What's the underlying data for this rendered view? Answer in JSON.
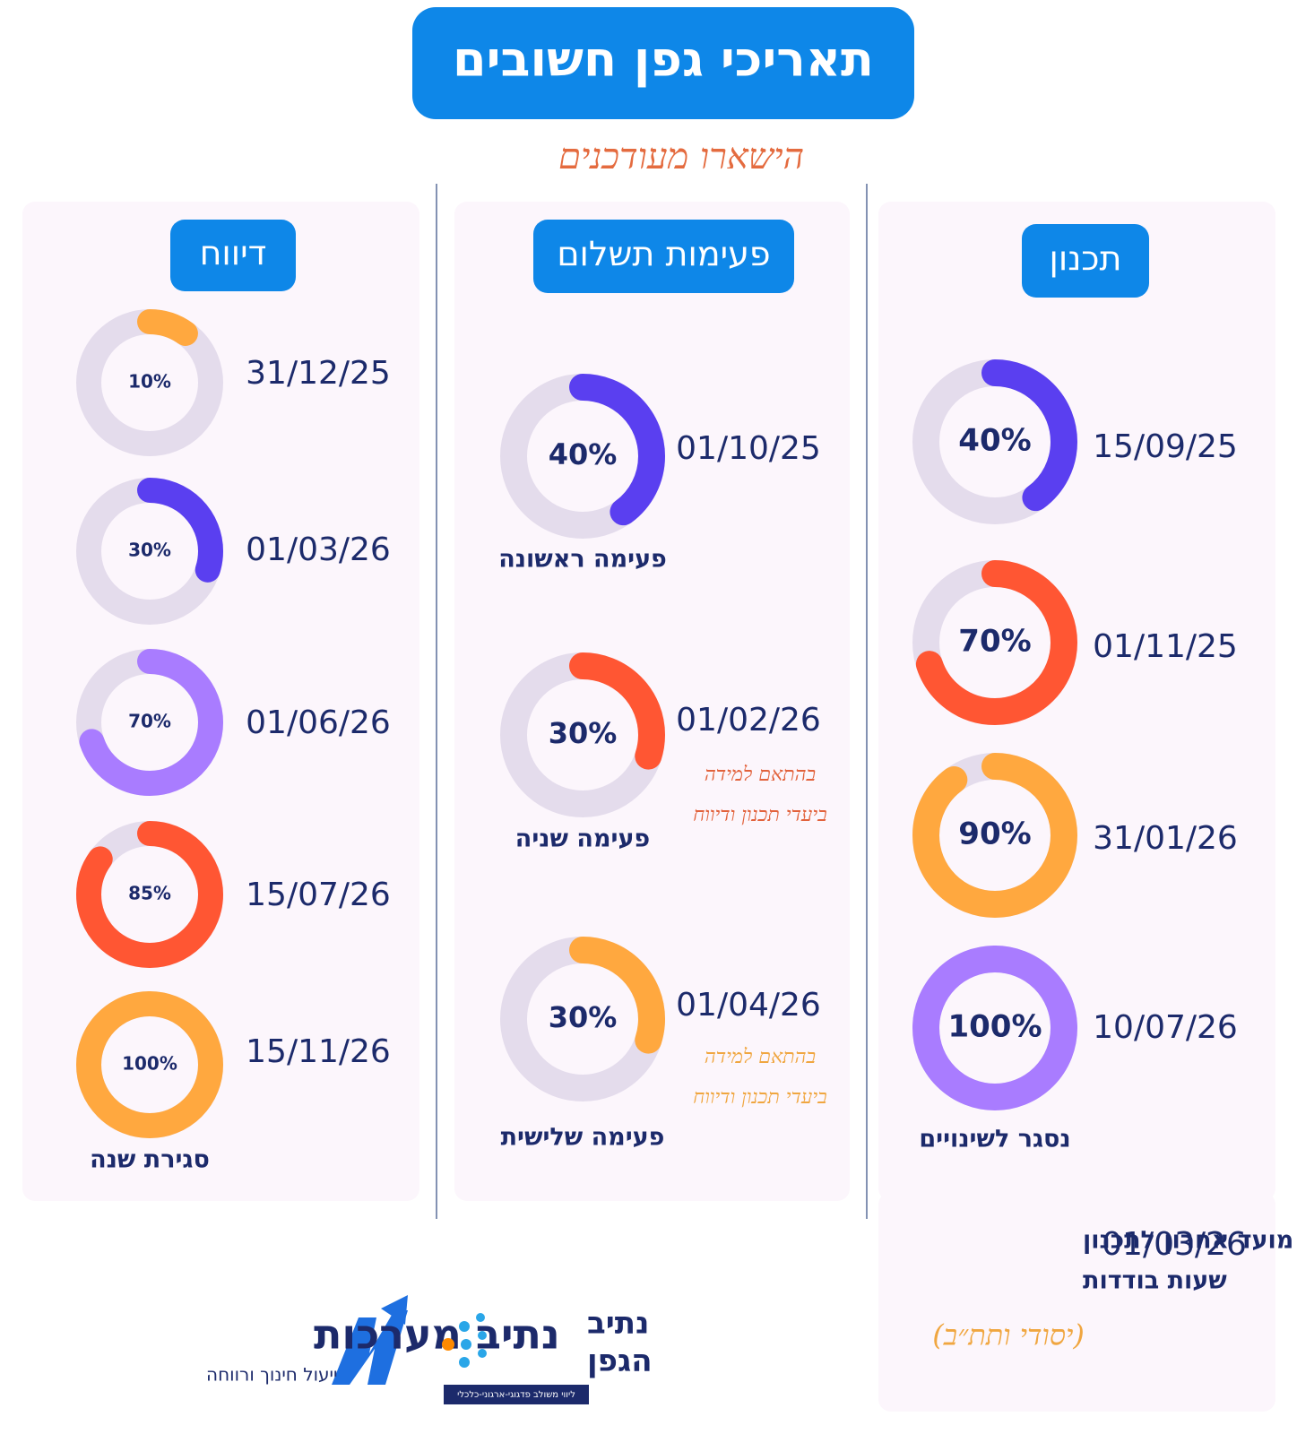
{
  "header": {
    "title": "תאריכי גפן חשובים",
    "subtitle": "הישארו מעודכנים"
  },
  "columns": [
    {
      "title": "תכנון",
      "items": [
        {
          "date": "15/09/25",
          "value": 40,
          "value_label": "40%",
          "color": "#5a3ff0"
        },
        {
          "date": "01/11/25",
          "value": 70,
          "value_label": "70%",
          "color": "#ff5633"
        },
        {
          "date": "31/01/26",
          "value": 90,
          "value_label": "90%",
          "color": "#ffa83f"
        },
        {
          "date": "10/07/26",
          "value": 100,
          "value_label": "100%",
          "color": "#a97cff",
          "label": "נסגר לשינויים"
        }
      ]
    },
    {
      "title": "פעימות תשלום",
      "items": [
        {
          "date": "01/10/25",
          "value": 40,
          "value_label": "40%",
          "color": "#5a3ff0",
          "label": "פעימה ראשונה"
        },
        {
          "date": "01/02/26",
          "value": 30,
          "value_label": "30%",
          "color": "#ff5633",
          "label": "פעימה שניה",
          "note": [
            "בהתאם למידה",
            "ביעדי תכנון ודיווח"
          ],
          "note_color": "#e2623c"
        },
        {
          "date": "01/04/26",
          "value": 30,
          "value_label": "30%",
          "color": "#ffa83f",
          "label": "פעימה שלישית",
          "note": [
            "בהתאם למידה",
            "ביעדי תכנון ודיווח"
          ],
          "note_color": "#f0a640"
        }
      ]
    },
    {
      "title": "דיווח",
      "items": [
        {
          "date": "31/12/25",
          "value": 10,
          "value_label": "10%",
          "color": "#ffa83f"
        },
        {
          "date": "01/03/26",
          "value": 30,
          "value_label": "30%",
          "color": "#5a3ff0"
        },
        {
          "date": "01/06/26",
          "value": 70,
          "value_label": "70%",
          "color": "#a97cff"
        },
        {
          "date": "15/07/26",
          "value": 85,
          "value_label": "85%",
          "color": "#ff5633"
        },
        {
          "date": "15/11/26",
          "value": 100,
          "value_label": "100%",
          "color": "#ffa83f",
          "label": "סגירת שנה"
        }
      ]
    }
  ],
  "deadline": {
    "date": "01/03/26",
    "lines": [
      "מועד אחרון לתכנון",
      "שעות בודדות"
    ],
    "note": "(יסודי ותת״ב)"
  },
  "logos": {
    "netiv_name": "נתיב מערכות",
    "netiv_tagline": "ייעול חינוך ורווחה",
    "gefen_top": "נתיב",
    "gefen_bottom": "הגפן",
    "gefen_tagline": "ליווי משולב פדגוגי-ארגוני-כלכלי"
  }
}
